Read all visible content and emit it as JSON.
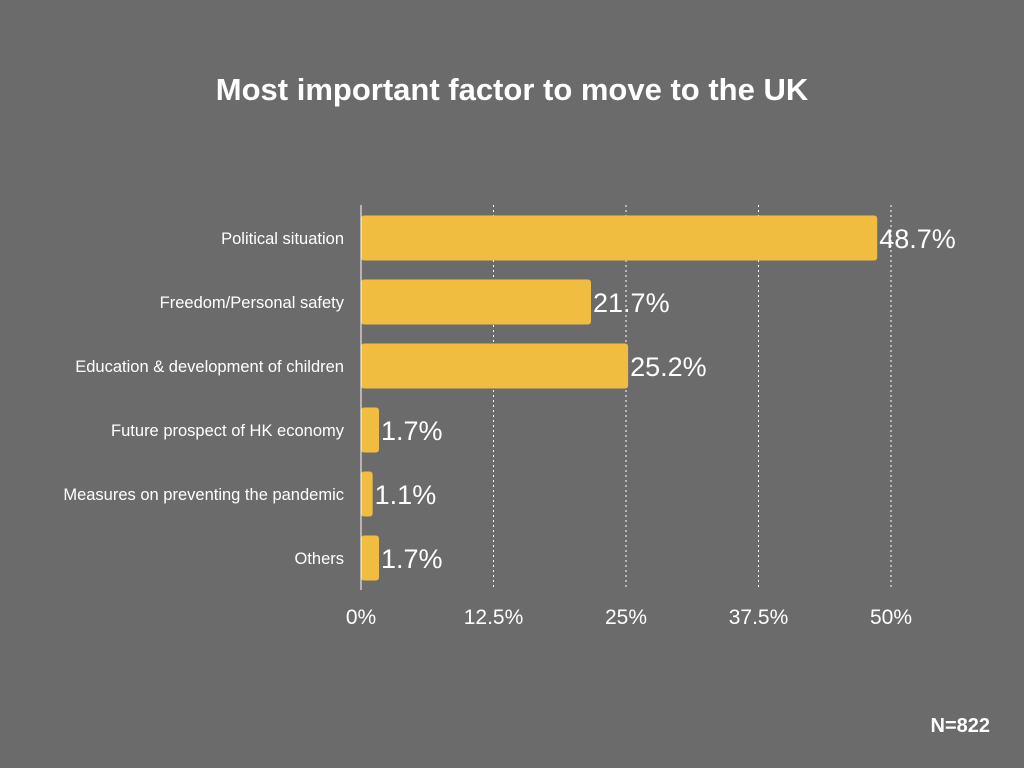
{
  "chart_data": {
    "type": "bar",
    "orientation": "horizontal",
    "title": "Most important factor to move to the UK",
    "categories": [
      "Political situation",
      "Freedom/Personal safety",
      "Education & development of children",
      "Future prospect of HK economy",
      "Measures on preventing the pandemic",
      "Others"
    ],
    "values": [
      48.7,
      21.7,
      25.2,
      1.7,
      1.1,
      1.7
    ],
    "value_labels": [
      "48.7%",
      "21.7%",
      "25.2%",
      "1.7%",
      "1.1%",
      "1.7%"
    ],
    "xticks": [
      0,
      12.5,
      25,
      37.5,
      50
    ],
    "xtick_labels": [
      "0%",
      "12.5%",
      "25%",
      "37.5%",
      "50%"
    ],
    "xlim": [
      0,
      50
    ],
    "grid": "vertical dotted",
    "bar_color": "#f0bd40",
    "background_color": "#6b6b6b",
    "text_color": "#ffffff"
  },
  "footnote": "N=822"
}
